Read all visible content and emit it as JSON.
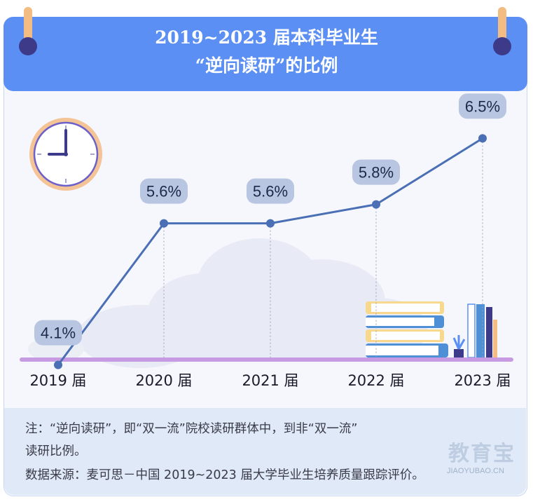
{
  "header": {
    "title_line1": "2019~2023 届本科毕业生",
    "title_line2": "“逆向读研”的比例"
  },
  "chart_data": {
    "type": "line",
    "title": "2019~2023 届本科毕业生“逆向读研”的比例",
    "categories": [
      "2019 届",
      "2020 届",
      "2021 届",
      "2022 届",
      "2023 届"
    ],
    "values": [
      4.1,
      5.6,
      5.6,
      5.8,
      6.5
    ],
    "value_labels": [
      "4.1%",
      "5.6%",
      "5.6%",
      "5.8%",
      "6.5%"
    ],
    "ylim": [
      3.6,
      7.0
    ],
    "grid": false,
    "colors": {
      "line": "#4a6fb5",
      "label_bg": "#b9c6e1",
      "axis": "#c79be3"
    }
  },
  "note": {
    "line1": "注：“逆向读研”，即“双一流”院校读研群体中，到非“双一流”",
    "line2": "读研比例。",
    "line3": "数据来源：麦可思－中国 2019~2023 届大学毕业生培养质量跟踪评价。"
  },
  "watermark": {
    "brand": "教育宝",
    "url": "JIAOYUBAO.CN"
  }
}
